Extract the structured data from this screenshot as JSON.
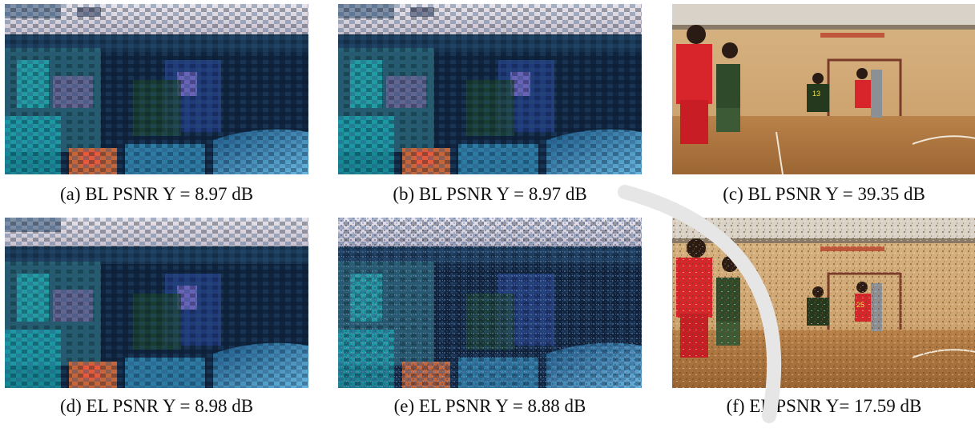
{
  "figure": {
    "captions": [
      "(a) BL PSNR Y = 8.97 dB",
      "(b) BL PSNR Y = 8.97 dB",
      "(c) BL PSNR Y = 39.35 dB",
      "(d) EL PSNR Y = 8.98 dB",
      "(e) EL PSNR Y = 8.88 dB",
      "(f) EL PSNR Y= 17.59 dB"
    ],
    "panels": [
      {
        "content": "corrupted-frame"
      },
      {
        "content": "corrupted-frame"
      },
      {
        "content": "basketball-clean"
      },
      {
        "content": "corrupted-frame"
      },
      {
        "content": "corrupted-frame-noisy"
      },
      {
        "content": "basketball-noisy"
      }
    ],
    "jersey_numbers": [
      "13",
      "25"
    ]
  }
}
